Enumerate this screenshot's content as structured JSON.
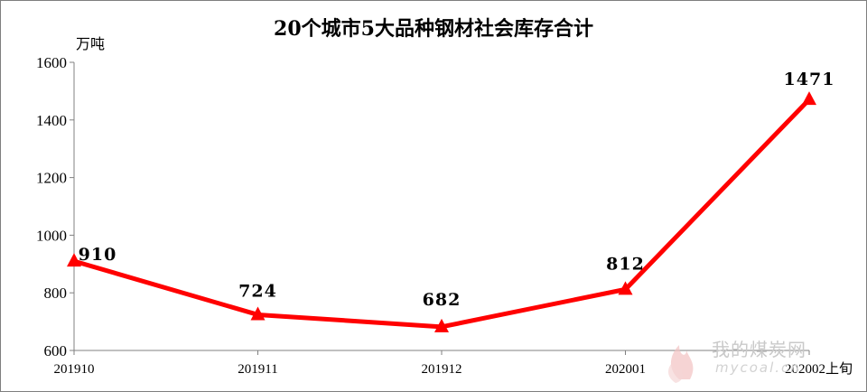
{
  "chart_data": {
    "type": "line",
    "title": "20个城市5大品种钢材社会库存合计",
    "ylabel": "万吨",
    "xlabel": "",
    "categories": [
      "201910",
      "201911",
      "201912",
      "202001",
      "202002上旬"
    ],
    "series": [
      {
        "values": [
          910,
          724,
          682,
          812,
          1471
        ],
        "color": "#ff0000"
      }
    ],
    "data_labels": [
      "910",
      "724",
      "682",
      "812",
      "1471"
    ],
    "ylim": [
      600,
      1600
    ],
    "yticks": [
      "600",
      "800",
      "1000",
      "1200",
      "1400",
      "1600"
    ],
    "grid": false,
    "marker": "triangle"
  },
  "watermark": {
    "text": "我的煤炭网",
    "url": "mycoal.cn"
  }
}
